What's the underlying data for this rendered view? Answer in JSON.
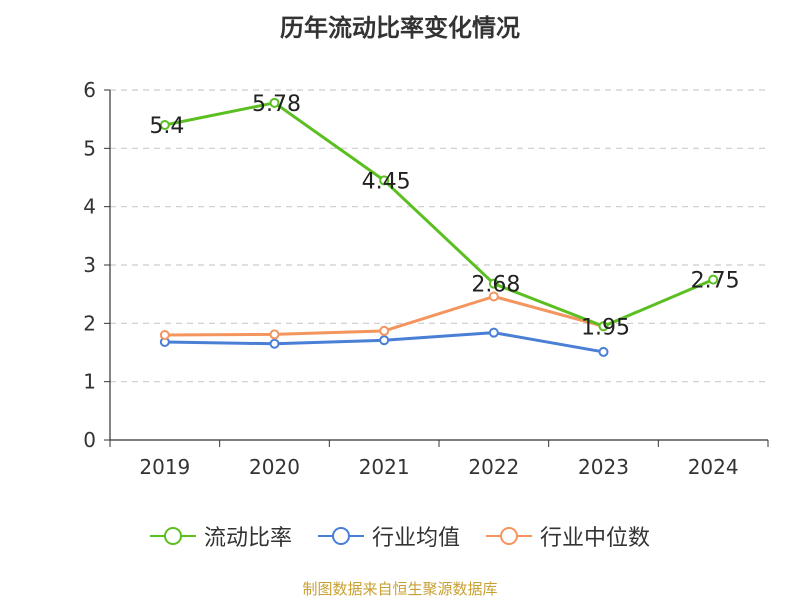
{
  "title": "历年流动比率变化情况",
  "source": "制图数据来自恒生聚源数据库",
  "chart_data": {
    "type": "line",
    "title": "历年流动比率变化情况",
    "categories": [
      "2019",
      "2020",
      "2021",
      "2022",
      "2023",
      "2024"
    ],
    "ylim": [
      0,
      6
    ],
    "yticks": [
      0,
      1,
      2,
      3,
      4,
      5,
      6
    ],
    "grid": true,
    "legend_position": "bottom",
    "series": [
      {
        "name": "流动比率",
        "color": "#5bbf21",
        "show_labels": true,
        "labels": [
          "5.4",
          "5.78",
          "4.45",
          "2.68",
          "1.95",
          "2.75"
        ],
        "values": [
          5.4,
          5.78,
          4.45,
          2.68,
          1.95,
          2.75
        ]
      },
      {
        "name": "行业均值",
        "color": "#4a7fd6",
        "show_labels": false,
        "values": [
          1.68,
          1.65,
          1.71,
          1.84,
          1.51,
          null
        ]
      },
      {
        "name": "行业中位数",
        "color": "#f4955e",
        "show_labels": false,
        "values": [
          1.8,
          1.81,
          1.87,
          2.46,
          1.95,
          null
        ]
      }
    ]
  }
}
